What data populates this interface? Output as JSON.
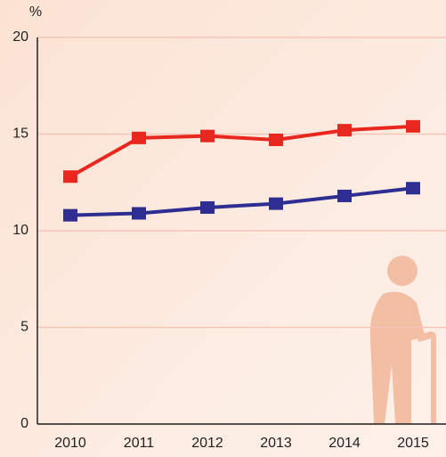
{
  "chart_data": {
    "type": "line",
    "y_unit": "%",
    "categories": [
      "2010",
      "2011",
      "2012",
      "2013",
      "2014",
      "2015"
    ],
    "series": [
      {
        "color": "#e8271f",
        "values": [
          12.8,
          14.8,
          14.9,
          14.7,
          15.2,
          15.4
        ]
      },
      {
        "color": "#2e2d91",
        "values": [
          10.8,
          10.9,
          11.2,
          11.4,
          11.8,
          12.2
        ]
      }
    ],
    "ylim": [
      0,
      20
    ],
    "yticks": [
      0,
      5,
      10,
      15,
      20
    ],
    "grid": true
  }
}
